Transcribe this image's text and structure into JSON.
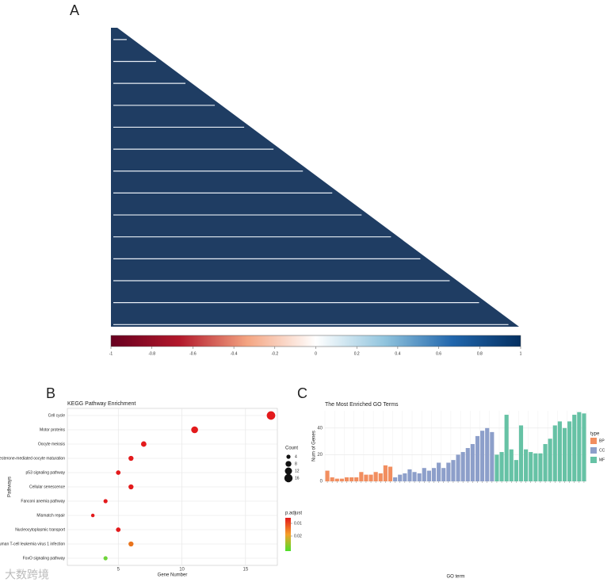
{
  "panels": [
    "A",
    "B",
    "C"
  ],
  "watermark": "大数跨境",
  "chart_data": [
    {
      "type": "heatmap",
      "colors": [
        "#67001f",
        "#b2182b",
        "#f4a582",
        "#ffffff",
        "#92c5de",
        "#2166ac",
        "#053061"
      ],
      "cell_color": "#1f3d63",
      "xlim": [
        -1,
        1
      ],
      "xticks": [
        -1,
        -0.8,
        -0.6,
        -0.4,
        -0.2,
        0,
        0.2,
        0.4,
        0.6,
        0.8,
        1
      ]
    },
    {
      "type": "dot",
      "title": "KEGG Pathway Enrichment",
      "xlabel": "Gene Number",
      "ylabel": "Pathways",
      "categories": [
        "Cell cycle",
        "Motor proteins",
        "Oocyte meiosis",
        "Progesterone-mediated oocyte maturation",
        "p53 signaling pathway",
        "Cellular senescence",
        "Fanconi anemia pathway",
        "Mismatch repair",
        "Nucleocytoplasmic transport",
        "Human T-cell leukemia virus 1 infection",
        "FoxO signaling pathway"
      ],
      "values": [
        17,
        11,
        7,
        6,
        5,
        6,
        4,
        3,
        5,
        6,
        4
      ],
      "colors": [
        "#e31a1c",
        "#e31a1c",
        "#e31a1c",
        "#e31a1c",
        "#e31a1c",
        "#e31a1c",
        "#e31a1c",
        "#e31a1c",
        "#e31a1c",
        "#e9741d",
        "#6fd43a"
      ],
      "xlim": [
        1,
        17.5
      ],
      "xticks": [
        5,
        10,
        15
      ],
      "grid": true,
      "size_legend": {
        "title": "Count",
        "values": [
          4,
          8,
          12,
          16
        ]
      },
      "color_legend": {
        "title": "p.adjust",
        "ticks": [
          0.01,
          0.02
        ],
        "colors": [
          "#e31a1c",
          "#f5a02a",
          "#4ee02a"
        ]
      }
    },
    {
      "type": "bar",
      "title": "The Most Enriched GO Terms",
      "xlabel": "GO term",
      "ylabel": "Num of Genes",
      "legend_title": "type",
      "series": [
        {
          "name": "BP",
          "color": "#f28e5f",
          "values": [
            8,
            3,
            2,
            2,
            3,
            3,
            3,
            7,
            5,
            5,
            7,
            6,
            12,
            11
          ]
        },
        {
          "name": "CC",
          "color": "#8d9fca",
          "values": [
            3,
            5,
            6,
            9,
            7,
            6,
            10,
            8,
            10,
            14,
            10,
            14,
            16,
            20,
            22,
            25,
            28,
            34,
            38,
            40,
            37
          ]
        },
        {
          "name": "MF",
          "color": "#66c2a5",
          "values": [
            20,
            22,
            50,
            24,
            16,
            42,
            24,
            22,
            21,
            21,
            28,
            32,
            42,
            45,
            40,
            45,
            50,
            52,
            51
          ]
        }
      ],
      "ylim": [
        0,
        53
      ],
      "yticks": [
        0,
        20,
        40
      ],
      "grid": true
    }
  ]
}
